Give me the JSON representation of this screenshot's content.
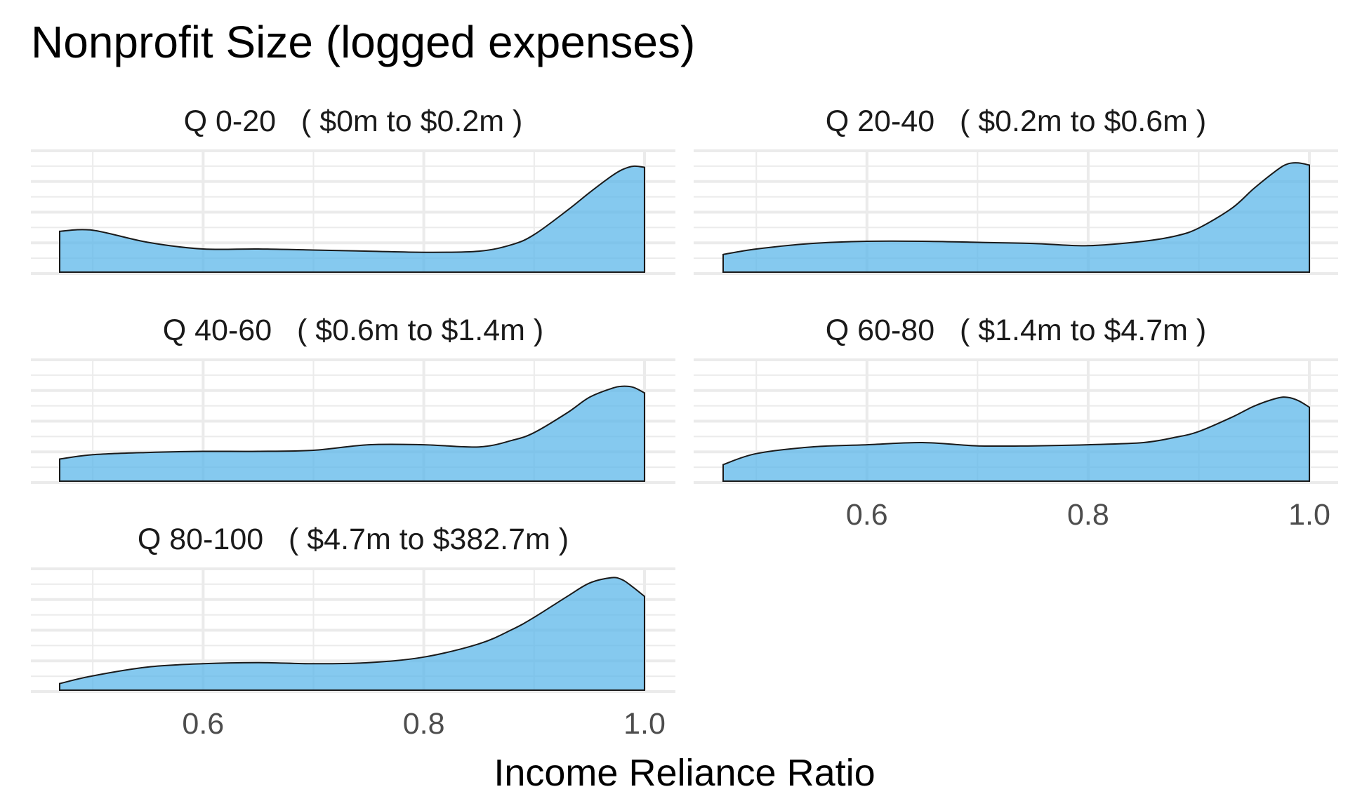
{
  "chart_data": {
    "type": "area",
    "title": "Nonprofit Size (logged expenses)",
    "xlabel": "Income Reliance Ratio",
    "ylabel": "",
    "xlim": [
      0.47,
      1.0
    ],
    "x_ticks": [
      "0.6",
      "0.8",
      "1.0"
    ],
    "x_tick_values": [
      0.6,
      0.8,
      1.0
    ],
    "grid": true,
    "fill_color": "#56B4E9",
    "line_color": "#1a1a1a",
    "panels": [
      {
        "label": "Q 0-20   ( $0m to $0.2m )",
        "x": [
          0.47,
          0.5,
          0.55,
          0.6,
          0.65,
          0.7,
          0.75,
          0.8,
          0.85,
          0.88,
          0.9,
          0.93,
          0.95,
          0.97,
          0.98,
          0.99,
          1.0
        ],
        "y": [
          0.37,
          0.38,
          0.27,
          0.21,
          0.21,
          0.2,
          0.19,
          0.18,
          0.19,
          0.25,
          0.34,
          0.56,
          0.72,
          0.87,
          0.93,
          0.96,
          0.95
        ]
      },
      {
        "label": "Q 20-40   ( $0.2m to $0.6m )",
        "x": [
          0.47,
          0.5,
          0.55,
          0.6,
          0.65,
          0.7,
          0.75,
          0.8,
          0.85,
          0.88,
          0.9,
          0.93,
          0.95,
          0.97,
          0.98,
          0.99,
          1.0
        ],
        "y": [
          0.16,
          0.21,
          0.26,
          0.28,
          0.28,
          0.27,
          0.26,
          0.24,
          0.28,
          0.33,
          0.4,
          0.58,
          0.76,
          0.92,
          0.98,
          0.99,
          0.97
        ]
      },
      {
        "label": "Q 40-60   ( $0.6m to $1.4m )",
        "x": [
          0.47,
          0.5,
          0.55,
          0.6,
          0.65,
          0.7,
          0.75,
          0.8,
          0.85,
          0.88,
          0.9,
          0.93,
          0.95,
          0.97,
          0.98,
          0.99,
          1.0
        ],
        "y": [
          0.2,
          0.24,
          0.26,
          0.27,
          0.27,
          0.28,
          0.33,
          0.33,
          0.31,
          0.37,
          0.44,
          0.62,
          0.76,
          0.84,
          0.86,
          0.85,
          0.8
        ]
      },
      {
        "label": "Q 60-80   ( $1.4m to $4.7m )",
        "x": [
          0.47,
          0.5,
          0.55,
          0.6,
          0.65,
          0.7,
          0.75,
          0.8,
          0.85,
          0.88,
          0.9,
          0.93,
          0.95,
          0.97,
          0.98,
          0.99,
          1.0
        ],
        "y": [
          0.15,
          0.25,
          0.31,
          0.33,
          0.35,
          0.32,
          0.32,
          0.33,
          0.35,
          0.4,
          0.45,
          0.58,
          0.68,
          0.75,
          0.76,
          0.73,
          0.67
        ]
      },
      {
        "label": "Q 80-100   ( $4.7m to $382.7m )",
        "x": [
          0.47,
          0.5,
          0.55,
          0.6,
          0.65,
          0.7,
          0.75,
          0.8,
          0.85,
          0.88,
          0.9,
          0.93,
          0.95,
          0.97,
          0.98,
          0.99,
          1.0
        ],
        "y": [
          0.06,
          0.13,
          0.21,
          0.24,
          0.25,
          0.24,
          0.25,
          0.3,
          0.42,
          0.55,
          0.66,
          0.85,
          0.97,
          1.02,
          1.0,
          0.93,
          0.85
        ]
      }
    ]
  }
}
